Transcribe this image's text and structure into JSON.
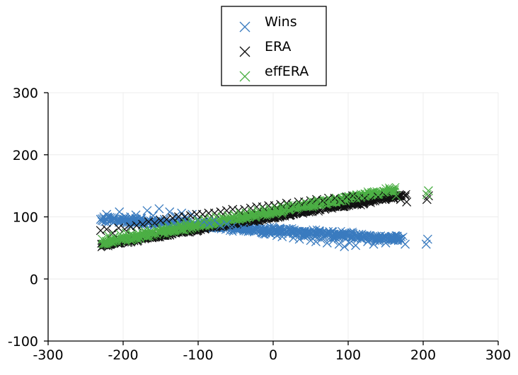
{
  "chart_data": {
    "type": "scatter",
    "title": "",
    "xlabel": "",
    "ylabel": "",
    "xlim": [
      -300,
      300
    ],
    "ylim": [
      -100,
      300
    ],
    "xticks": [
      -300,
      -200,
      -100,
      0,
      100,
      200,
      300
    ],
    "yticks": [
      -100,
      0,
      100,
      200,
      300
    ],
    "grid": true,
    "legend_position": "top-center",
    "marker": "x",
    "series": [
      {
        "name": "Wins",
        "color": "#3a7bbf",
        "trend": {
          "slope": -0.08,
          "intercept": 78,
          "spread": 9
        },
        "points": [
          [
            -230,
            96
          ],
          [
            -222,
            104
          ],
          [
            -212,
            99
          ],
          [
            -205,
            108
          ],
          [
            -198,
            95
          ],
          [
            -190,
            100
          ],
          [
            -183,
            103
          ],
          [
            -176,
            98
          ],
          [
            -168,
            110
          ],
          [
            -160,
            102
          ],
          [
            -152,
            113
          ],
          [
            -145,
            96
          ],
          [
            -138,
            108
          ],
          [
            -130,
            101
          ],
          [
            -122,
            106
          ],
          [
            -115,
            99
          ],
          [
            -108,
            104
          ],
          [
            -100,
            96
          ],
          [
            -92,
            92
          ],
          [
            -85,
            90
          ],
          [
            -78,
            94
          ],
          [
            -70,
            86
          ],
          [
            -62,
            88
          ],
          [
            -55,
            84
          ],
          [
            -47,
            80
          ],
          [
            -40,
            82
          ],
          [
            -32,
            78
          ],
          [
            -25,
            76
          ],
          [
            -18,
            80
          ],
          [
            -10,
            74
          ],
          [
            -3,
            72
          ],
          [
            5,
            70
          ],
          [
            12,
            68
          ],
          [
            20,
            72
          ],
          [
            27,
            66
          ],
          [
            35,
            64
          ],
          [
            42,
            68
          ],
          [
            50,
            62
          ],
          [
            57,
            60
          ],
          [
            64,
            64
          ],
          [
            72,
            58
          ],
          [
            80,
            62
          ],
          [
            88,
            56
          ],
          [
            95,
            52
          ],
          [
            102,
            58
          ],
          [
            110,
            54
          ],
          [
            118,
            64
          ],
          [
            126,
            60
          ],
          [
            134,
            56
          ],
          [
            142,
            62
          ],
          [
            150,
            58
          ],
          [
            158,
            64
          ],
          [
            166,
            66
          ],
          [
            176,
            56
          ],
          [
            204,
            56
          ],
          [
            206,
            64
          ]
        ]
      },
      {
        "name": "ERA",
        "color": "#111111",
        "trend": {
          "slope": 0.2,
          "intercept": 100,
          "spread": 6
        },
        "points": [
          [
            -230,
            78
          ],
          [
            -222,
            80
          ],
          [
            -214,
            74
          ],
          [
            -206,
            82
          ],
          [
            -198,
            80
          ],
          [
            -190,
            84
          ],
          [
            -182,
            86
          ],
          [
            -174,
            88
          ],
          [
            -166,
            92
          ],
          [
            -158,
            90
          ],
          [
            -150,
            94
          ],
          [
            -142,
            96
          ],
          [
            -134,
            98
          ],
          [
            -126,
            100
          ],
          [
            -118,
            100
          ],
          [
            -110,
            102
          ],
          [
            -102,
            104
          ],
          [
            -94,
            104
          ],
          [
            -86,
            106
          ],
          [
            -78,
            106
          ],
          [
            -70,
            108
          ],
          [
            -62,
            110
          ],
          [
            -54,
            112
          ],
          [
            -46,
            110
          ],
          [
            -38,
            112
          ],
          [
            -30,
            114
          ],
          [
            -22,
            116
          ],
          [
            -14,
            116
          ],
          [
            -6,
            118
          ],
          [
            2,
            118
          ],
          [
            10,
            120
          ],
          [
            18,
            122
          ],
          [
            26,
            120
          ],
          [
            34,
            124
          ],
          [
            42,
            124
          ],
          [
            50,
            126
          ],
          [
            58,
            128
          ],
          [
            66,
            126
          ],
          [
            74,
            130
          ],
          [
            82,
            130
          ],
          [
            90,
            128
          ],
          [
            98,
            132
          ],
          [
            106,
            134
          ],
          [
            114,
            130
          ],
          [
            122,
            130
          ],
          [
            130,
            128
          ],
          [
            140,
            132
          ],
          [
            150,
            134
          ],
          [
            160,
            130
          ],
          [
            170,
            128
          ],
          [
            178,
            124
          ],
          [
            205,
            128
          ],
          [
            207,
            134
          ]
        ]
      },
      {
        "name": "effERA",
        "color": "#4caf45",
        "trend": {
          "slope": 0.22,
          "intercept": 108,
          "spread": 7
        },
        "points": [
          [
            -228,
            64
          ],
          [
            -220,
            70
          ],
          [
            -212,
            68
          ],
          [
            -204,
            72
          ],
          [
            -196,
            74
          ],
          [
            -188,
            70
          ],
          [
            -180,
            74
          ],
          [
            -172,
            78
          ],
          [
            -164,
            76
          ],
          [
            -156,
            80
          ],
          [
            -148,
            82
          ],
          [
            -140,
            84
          ],
          [
            -132,
            86
          ],
          [
            -124,
            88
          ],
          [
            -116,
            90
          ],
          [
            -108,
            92
          ],
          [
            -100,
            94
          ],
          [
            -92,
            96
          ],
          [
            -84,
            98
          ],
          [
            -76,
            100
          ],
          [
            -68,
            100
          ],
          [
            -60,
            102
          ],
          [
            -52,
            104
          ],
          [
            -44,
            106
          ],
          [
            -36,
            106
          ],
          [
            -28,
            108
          ],
          [
            -20,
            110
          ],
          [
            -12,
            112
          ],
          [
            -4,
            112
          ],
          [
            4,
            114
          ],
          [
            12,
            116
          ],
          [
            20,
            118
          ],
          [
            28,
            118
          ],
          [
            36,
            120
          ],
          [
            44,
            122
          ],
          [
            52,
            124
          ],
          [
            60,
            126
          ],
          [
            68,
            126
          ],
          [
            76,
            128
          ],
          [
            84,
            130
          ],
          [
            92,
            130
          ],
          [
            100,
            132
          ],
          [
            108,
            134
          ],
          [
            116,
            134
          ],
          [
            124,
            136
          ],
          [
            132,
            138
          ],
          [
            140,
            136
          ],
          [
            148,
            140
          ],
          [
            156,
            142
          ],
          [
            164,
            134
          ],
          [
            205,
            136
          ],
          [
            207,
            142
          ]
        ]
      }
    ]
  }
}
